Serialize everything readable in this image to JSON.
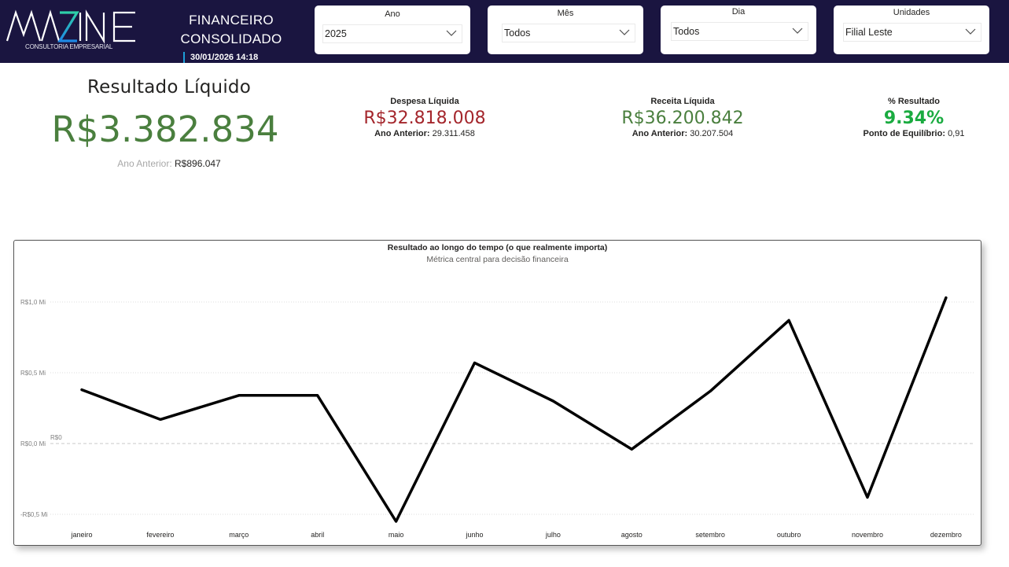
{
  "header": {
    "logo": {
      "text": "MAZINE",
      "subtitle": "CONSULTORIA EMPRESARIAL"
    },
    "title_line1": "FINANCEIRO",
    "title_line2": "CONSOLIDADO",
    "timestamp": "30/01/2026 14:18",
    "background_color": "#1a1540"
  },
  "filters": [
    {
      "label": "Ano",
      "value": "2025"
    },
    {
      "label": "Mês",
      "value": "Todos"
    },
    {
      "label": "Dia",
      "value": "Todos"
    },
    {
      "label": "Unidades",
      "value": "Filial Leste"
    }
  ],
  "kpis": {
    "resultado": {
      "title": "Resultado Líquido",
      "value": "R$3.382.834",
      "prev_label": "Ano Anterior:",
      "prev_value": "R$896.047",
      "color": "#4a7f3e"
    },
    "despesa": {
      "title": "Despesa Líquida",
      "value": "R$32.818.008",
      "sub_label": "Ano Anterior:",
      "sub_value": "29.311.458",
      "color": "#a4262c"
    },
    "receita": {
      "title": "Receita Líquida",
      "value": "R$36.200.842",
      "sub_label": "Ano Anterior:",
      "sub_value": "30.207.504",
      "color": "#4a7f3e"
    },
    "percentual": {
      "title": "% Resultado",
      "value": "9.34%",
      "sub_label": "Ponto de Equilíbrio:",
      "sub_value": "0,91",
      "color": "#1aab40"
    }
  },
  "chart_data": {
    "type": "line",
    "title": "Resultado ao longo do tempo (o que realmente importa)",
    "subtitle": "Métrica central para decisão financeira",
    "categories": [
      "janeiro",
      "fevereiro",
      "março",
      "abril",
      "maio",
      "junho",
      "julho",
      "agosto",
      "setembro",
      "outubro",
      "novembro",
      "dezembro"
    ],
    "series": [
      {
        "name": "Resultado",
        "unit": "R$ Mi",
        "color": "#000000",
        "values": [
          0.38,
          0.17,
          0.34,
          0.34,
          -0.55,
          0.57,
          0.3,
          -0.04,
          0.37,
          0.87,
          -0.38,
          1.03
        ]
      }
    ],
    "yticks": [
      "R$1,0 Mi",
      "R$0,5 Mi",
      "R$0,0 Mi",
      "-R$0,5 Mi"
    ],
    "ytick_values": [
      1.0,
      0.5,
      0.0,
      -0.5
    ],
    "reference_line": {
      "label": "R$0",
      "value": 0
    },
    "ylim": [
      -0.55,
      1.1
    ],
    "xlabel": "",
    "ylabel": "",
    "grid": true,
    "legend": "none"
  }
}
